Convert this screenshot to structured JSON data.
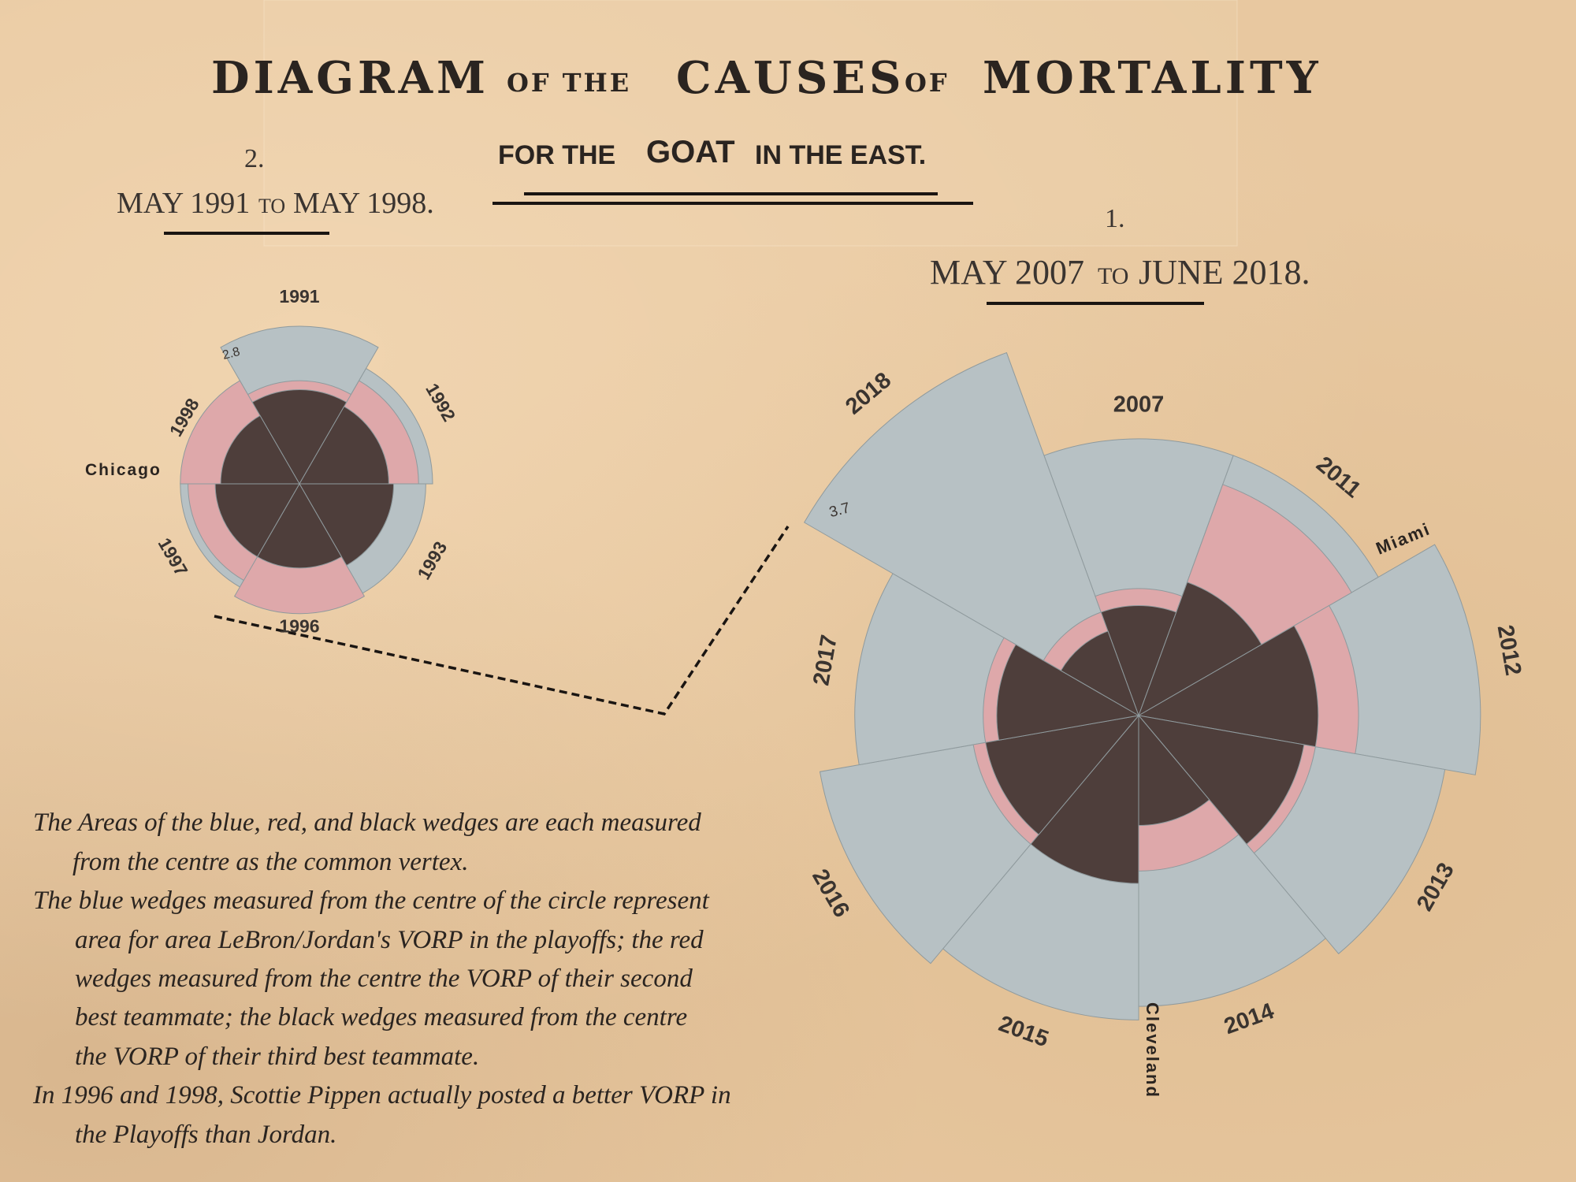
{
  "title": {
    "part1": "DIAGRAM",
    "of1": "OF THE",
    "part2": "CAUSES",
    "of2": "OF",
    "part3": "MORTALITY"
  },
  "subtitle": {
    "a": "FOR THE",
    "b": "GOAT",
    "c": "IN THE EAST."
  },
  "panels": {
    "jordan": {
      "number": "2.",
      "period_a": "MAY 1991",
      "period_to": "TO",
      "period_b": "MAY 1998."
    },
    "lebron": {
      "number": "1.",
      "period_a": "MAY 2007",
      "period_to": "TO",
      "period_b": "JUNE 2018."
    }
  },
  "notes": [
    "The Areas of the blue, red, and black wedges are each measured",
    "from the centre as the common vertex.",
    "The blue wedges measured from the centre of the circle represent",
    "area for area LeBron/Jordan's VORP in the playoffs; the red",
    "wedges measured from the centre the VORP of their second",
    "best teammate; the black wedges measured from the centre",
    "the VORP of their third best teammate.",
    "In 1996 and 1998, Scottie Pippen actually posted a better VORP in",
    "the Playoffs than Jordan."
  ],
  "colors": {
    "blue": "#b7c1c4",
    "red": "#dea8aa",
    "black": "#4e3e3b",
    "edge": "#8f9a9d",
    "background": "#e8c8a0"
  },
  "chart_data": [
    {
      "type": "polar-area",
      "name": "Jordan 1991-1998",
      "team_label": "Chicago",
      "max_label": "2.8",
      "categories": [
        "1991",
        "1992",
        "1993",
        "1996",
        "1997",
        "1998"
      ],
      "series": [
        {
          "name": "blue",
          "values": [
            2.8,
            2.0,
            1.8,
            1.5,
            1.6,
            1.2
          ]
        },
        {
          "name": "red",
          "values": [
            1.2,
            1.6,
            1.0,
            1.9,
            1.4,
            1.6
          ]
        },
        {
          "name": "black",
          "values": [
            1.0,
            0.9,
            1.0,
            0.8,
            0.8,
            0.7
          ]
        }
      ]
    },
    {
      "type": "polar-area",
      "name": "LeBron 2007-2018",
      "team_labels": [
        "Miami",
        "Cleveland"
      ],
      "max_label": "3.7",
      "categories": [
        "2007",
        "2011",
        "2012",
        "2013",
        "2014",
        "2015",
        "2016",
        "2017",
        "2018"
      ],
      "series": [
        {
          "name": "blue",
          "values": [
            1.9,
            1.9,
            2.9,
            2.4,
            2.1,
            2.3,
            2.6,
            2.0,
            3.7
          ]
        },
        {
          "name": "red",
          "values": [
            0.4,
            1.5,
            1.2,
            0.8,
            0.6,
            0.4,
            0.7,
            0.6,
            0.3
          ]
        },
        {
          "name": "black",
          "values": [
            0.3,
            0.5,
            0.8,
            0.7,
            0.3,
            0.7,
            0.6,
            0.5,
            0.2
          ]
        }
      ]
    }
  ]
}
